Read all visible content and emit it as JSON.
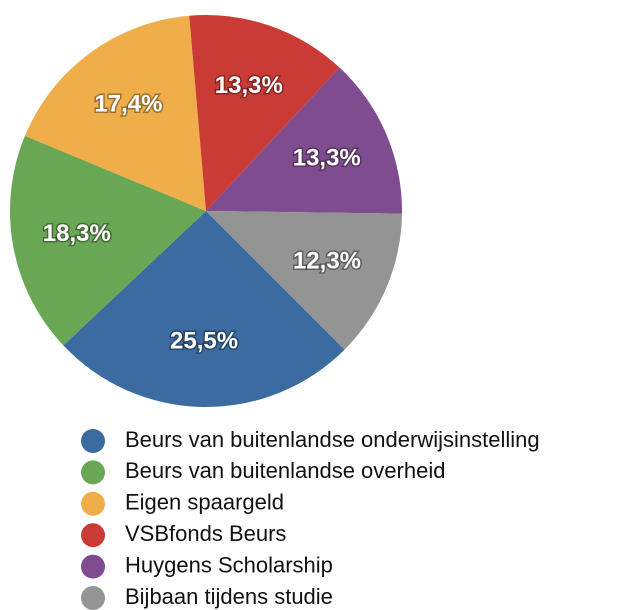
{
  "chart_data": {
    "type": "pie",
    "categories": [
      "Beurs van buitenlandse onderwijsinstelling",
      "Beurs van buitenlandse overheid",
      "Eigen spaargeld",
      "VSBfonds Beurs",
      "Huygens Scholarship",
      "Bijbaan tijdens studie"
    ],
    "values": [
      25.5,
      18.3,
      17.4,
      13.3,
      13.3,
      12.3
    ],
    "value_labels": [
      "25,5%",
      "18,3%",
      "17,4%",
      "13,3%",
      "13,3%",
      "12,3%"
    ],
    "colors": [
      "#3b6ba1",
      "#6aa755",
      "#efae4a",
      "#cb3b35",
      "#7f4d8f",
      "#949494"
    ]
  }
}
